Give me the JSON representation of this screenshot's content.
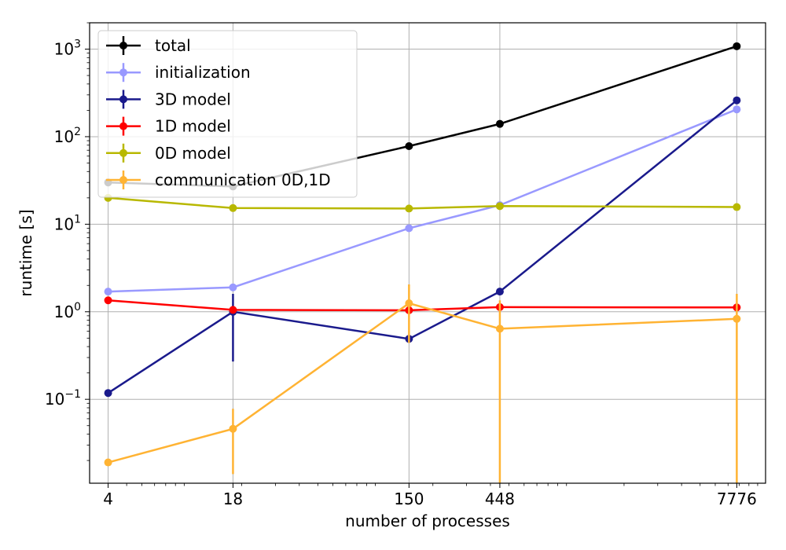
{
  "chart_data": {
    "type": "line",
    "xlabel": "number of processes",
    "ylabel": "runtime [s]",
    "x_scale": "log",
    "y_scale": "log",
    "xlim": [
      3.2,
      11000
    ],
    "ylim": [
      0.011,
      2000
    ],
    "grid": true,
    "legend_position": "top-left",
    "x": [
      4,
      18,
      150,
      448,
      7776
    ],
    "x_tick_labels": [
      "4",
      "18",
      "150",
      "448",
      "7776"
    ],
    "y_ticks": [
      {
        "value": 0.1,
        "base": "10",
        "exp": "−1"
      },
      {
        "value": 1,
        "base": "10",
        "exp": "0"
      },
      {
        "value": 10,
        "base": "10",
        "exp": "1"
      },
      {
        "value": 100,
        "base": "10",
        "exp": "2"
      },
      {
        "value": 1000,
        "base": "10",
        "exp": "3"
      }
    ],
    "series": [
      {
        "name": "total",
        "color": "#000000",
        "values": [
          30,
          27,
          78,
          140,
          1080
        ]
      },
      {
        "name": "initialization",
        "color": "#9999ff",
        "values": [
          1.7,
          1.9,
          9.0,
          16.5,
          205
        ]
      },
      {
        "name": "3D model",
        "color": "#1a1a8c",
        "values": [
          0.118,
          1.0,
          0.49,
          1.7,
          260
        ],
        "error_low": [
          0.118,
          0.27,
          0.49,
          1.7,
          260
        ],
        "error_high": [
          0.118,
          1.6,
          0.49,
          1.7,
          260
        ]
      },
      {
        "name": "1D model",
        "color": "#ff0000",
        "values": [
          1.35,
          1.05,
          1.04,
          1.13,
          1.12
        ]
      },
      {
        "name": "0D model",
        "color": "#b8b800",
        "values": [
          20,
          15.3,
          15.1,
          16.1,
          15.7
        ]
      },
      {
        "name": "communication 0D,1D",
        "color": "#ffb333",
        "values": [
          0.019,
          0.046,
          1.25,
          0.64,
          0.83
        ],
        "error_low": [
          0.019,
          0.014,
          0.44,
          0.011,
          0.011
        ],
        "error_high": [
          0.019,
          0.078,
          2.05,
          1.35,
          1.6
        ]
      }
    ]
  }
}
